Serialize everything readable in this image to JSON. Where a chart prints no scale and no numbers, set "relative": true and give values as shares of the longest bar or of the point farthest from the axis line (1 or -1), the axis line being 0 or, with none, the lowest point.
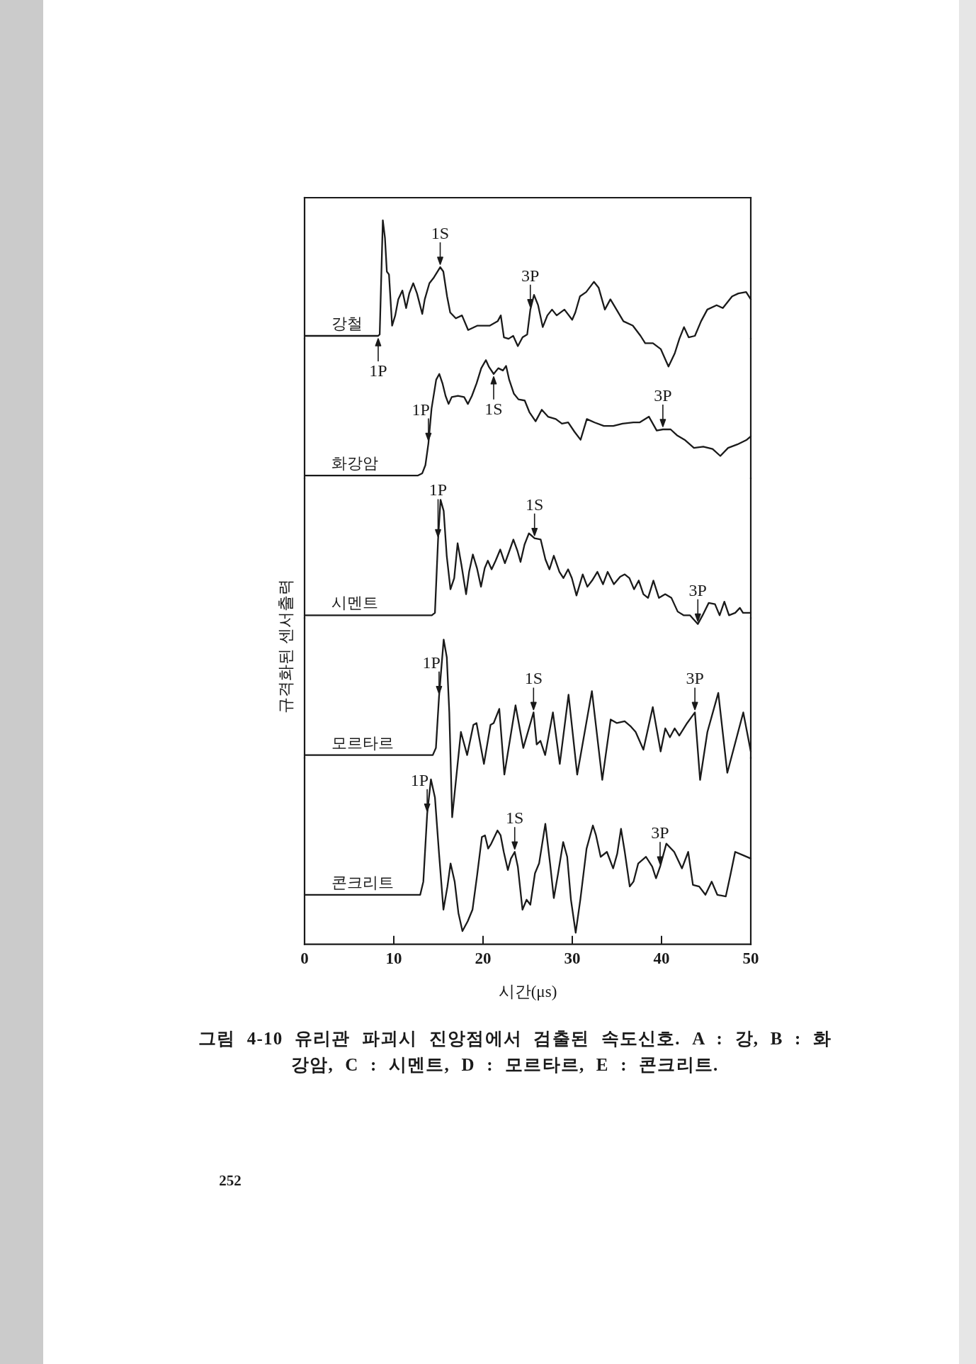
{
  "chart_data": [
    {
      "type": "line",
      "relative": true,
      "xlim": [
        0,
        50
      ],
      "tick_labels": false,
      "x": [
        0,
        8.25,
        8.42,
        8.77,
        9.01,
        9.22,
        9.46,
        9.81,
        10.16,
        10.5,
        10.96,
        11.38,
        11.73,
        12.18,
        12.6,
        13.19,
        13.47,
        13.99,
        14.5,
        15.2,
        15.55,
        15.97,
        16.32,
        16.95,
        17.64,
        18.33,
        19.38,
        20.77,
        21.64,
        21.99,
        22.34,
        22.86,
        23.38,
        23.9,
        24.43,
        24.95,
        25.3,
        25.71,
        26.17,
        26.69,
        27.21,
        27.73,
        28.25,
        29.12,
        29.99,
        30.34,
        30.86,
        31.56,
        32.43,
        32.95,
        33.65,
        34.27,
        34.86,
        35.73,
        36.78,
        37.65,
        38.17,
        39.04,
        39.91,
        40.78,
        41.48,
        42.0,
        42.52,
        43.04,
        43.74,
        44.43,
        45.13,
        46.17,
        46.87,
        47.91,
        48.61,
        49.48,
        50
      ],
      "series": [
        {
          "name": "강철",
          "color": "#1a1a1a",
          "values": [
            0.21,
            0.21,
            0.22,
            1.0,
            0.88,
            0.65,
            0.63,
            0.28,
            0.35,
            0.46,
            0.52,
            0.4,
            0.5,
            0.57,
            0.5,
            0.36,
            0.46,
            0.57,
            0.61,
            0.68,
            0.65,
            0.48,
            0.37,
            0.33,
            0.35,
            0.25,
            0.28,
            0.28,
            0.31,
            0.35,
            0.2,
            0.19,
            0.21,
            0.14,
            0.2,
            0.22,
            0.39,
            0.49,
            0.42,
            0.27,
            0.35,
            0.39,
            0.35,
            0.39,
            0.32,
            0.37,
            0.48,
            0.51,
            0.58,
            0.54,
            0.39,
            0.46,
            0.4,
            0.31,
            0.28,
            0.21,
            0.16,
            0.16,
            0.12,
            0,
            0.09,
            0.19,
            0.27,
            0.2,
            0.21,
            0.31,
            0.39,
            0.42,
            0.4,
            0.48,
            0.5,
            0.51,
            0.46
          ]
        }
      ],
      "annotations": [
        {
          "text": "1P",
          "x": 8.25,
          "y": 0.21
        },
        {
          "text": "1S",
          "x": 15.2,
          "y": 0.68
        },
        {
          "text": "3P",
          "x": 25.3,
          "y": 0.39
        }
      ]
    },
    {
      "type": "line",
      "relative": true,
      "xlim": [
        0,
        50
      ],
      "tick_labels": false,
      "x": [
        0,
        12.67,
        13.19,
        13.54,
        13.88,
        14.23,
        14.75,
        15.1,
        15.45,
        15.8,
        16.14,
        16.49,
        17.19,
        17.88,
        18.3,
        18.75,
        19.28,
        19.8,
        20.32,
        20.67,
        21.19,
        21.71,
        22.23,
        22.58,
        22.93,
        23.45,
        23.97,
        24.67,
        25.19,
        25.89,
        26.58,
        27.28,
        28.15,
        28.84,
        29.54,
        30.24,
        30.93,
        31.63,
        32.5,
        33.54,
        34.59,
        35.63,
        36.85,
        37.54,
        38.59,
        39.46,
        40.15,
        41.02,
        41.72,
        42.59,
        43.63,
        44.68,
        45.72,
        46.59,
        47.46,
        48.5,
        49.55,
        50
      ],
      "series": [
        {
          "name": "화강암",
          "color": "#1a1a1a",
          "values": [
            0,
            0,
            0.02,
            0.09,
            0.28,
            0.58,
            0.83,
            0.88,
            0.8,
            0.69,
            0.62,
            0.68,
            0.69,
            0.68,
            0.62,
            0.69,
            0.8,
            0.93,
            1.0,
            0.94,
            0.88,
            0.93,
            0.91,
            0.95,
            0.83,
            0.71,
            0.66,
            0.65,
            0.55,
            0.47,
            0.57,
            0.51,
            0.49,
            0.45,
            0.46,
            0.38,
            0.31,
            0.49,
            0.46,
            0.43,
            0.43,
            0.45,
            0.46,
            0.46,
            0.51,
            0.39,
            0.4,
            0.4,
            0.35,
            0.31,
            0.24,
            0.25,
            0.23,
            0.17,
            0.24,
            0.27,
            0.31,
            0.34
          ]
        }
      ],
      "annotations": [
        {
          "text": "1P",
          "x": 13.88,
          "y": 0.28
        },
        {
          "text": "1S",
          "x": 21.19,
          "y": 0.88
        },
        {
          "text": "3P",
          "x": 40.15,
          "y": 0.4
        }
      ]
    },
    {
      "type": "line",
      "relative": true,
      "xlim": [
        0,
        50
      ],
      "tick_labels": false,
      "x": [
        0,
        14.26,
        14.61,
        14.96,
        15.24,
        15.59,
        15.93,
        16.35,
        16.77,
        17.15,
        17.57,
        18.1,
        18.44,
        18.86,
        19.32,
        19.77,
        20.19,
        20.54,
        20.96,
        21.41,
        21.93,
        22.45,
        22.91,
        23.4,
        23.85,
        24.2,
        24.65,
        25.14,
        25.77,
        26.46,
        26.99,
        27.44,
        27.93,
        28.56,
        29.01,
        29.53,
        29.95,
        30.47,
        31.17,
        31.69,
        32.22,
        32.81,
        33.44,
        33.96,
        34.66,
        35.36,
        35.88,
        36.4,
        36.92,
        37.45,
        37.97,
        38.49,
        39.09,
        39.71,
        40.41,
        41.11,
        41.81,
        42.5,
        43.2,
        44.07,
        44.6,
        45.29,
        45.99,
        46.51,
        47.04,
        47.56,
        48.26,
        48.78,
        49.13,
        50
      ],
      "series": [
        {
          "name": "시멘트",
          "color": "#1a1a1a",
          "values": [
            0.07,
            0.07,
            0.09,
            0.68,
            1.0,
            0.91,
            0.55,
            0.28,
            0.37,
            0.65,
            0.48,
            0.24,
            0.42,
            0.56,
            0.45,
            0.3,
            0.45,
            0.51,
            0.44,
            0.51,
            0.6,
            0.49,
            0.58,
            0.68,
            0.59,
            0.5,
            0.64,
            0.73,
            0.69,
            0.68,
            0.52,
            0.44,
            0.55,
            0.42,
            0.37,
            0.44,
            0.37,
            0.23,
            0.4,
            0.3,
            0.35,
            0.42,
            0.32,
            0.42,
            0.32,
            0.38,
            0.4,
            0.37,
            0.28,
            0.35,
            0.24,
            0.21,
            0.35,
            0.21,
            0.24,
            0.21,
            0.1,
            0.07,
            0.07,
            0,
            0.07,
            0.17,
            0.16,
            0.07,
            0.18,
            0.07,
            0.09,
            0.13,
            0.09,
            0.09
          ]
        }
      ],
      "annotations": [
        {
          "text": "1P",
          "x": 14.96,
          "y": 0.68
        },
        {
          "text": "1S",
          "x": 25.77,
          "y": 0.69
        },
        {
          "text": "3P",
          "x": 44.07,
          "y": 0
        }
      ]
    },
    {
      "type": "line",
      "relative": true,
      "xlim": [
        0,
        50
      ],
      "tick_labels": false,
      "ylabel": "규격화된 센서출력",
      "x": [
        0,
        14.37,
        14.72,
        15.07,
        15.59,
        15.94,
        16.22,
        16.54,
        17.52,
        18.22,
        18.92,
        19.27,
        20.1,
        20.84,
        21.19,
        21.82,
        22.39,
        23.64,
        24.51,
        25.66,
        26.01,
        26.43,
        26.96,
        27.83,
        28.6,
        29.58,
        30.55,
        32.2,
        33.36,
        34.3,
        35.0,
        35.87,
        36.57,
        37.1,
        37.97,
        39.02,
        39.9,
        40.42,
        40.94,
        41.47,
        41.99,
        42.87,
        43.74,
        44.32,
        45.14,
        46.36,
        47.37,
        49.16,
        50
      ],
      "series": [
        {
          "name": "모르타르",
          "color": "#1a1a1a",
          "values": [
            0.35,
            0.35,
            0.39,
            0.68,
            1.0,
            0.9,
            0.59,
            0,
            0.48,
            0.35,
            0.52,
            0.53,
            0.3,
            0.52,
            0.53,
            0.61,
            0.24,
            0.63,
            0.39,
            0.59,
            0.41,
            0.43,
            0.35,
            0.59,
            0.3,
            0.69,
            0.24,
            0.71,
            0.21,
            0.55,
            0.53,
            0.54,
            0.51,
            0.48,
            0.38,
            0.62,
            0.37,
            0.5,
            0.45,
            0.5,
            0.46,
            0.53,
            0.59,
            0.21,
            0.48,
            0.7,
            0.25,
            0.59,
            0.37
          ]
        }
      ],
      "annotations": [
        {
          "text": "1P",
          "x": 15.07,
          "y": 0.68
        },
        {
          "text": "1S",
          "x": 25.66,
          "y": 0.59
        },
        {
          "text": "3P",
          "x": 43.74,
          "y": 0.59
        }
      ]
    },
    {
      "type": "line",
      "relative": true,
      "xlim": [
        0,
        50
      ],
      "xticks": [
        0,
        10,
        20,
        30,
        40,
        50
      ],
      "tick_labels": "x",
      "xlabel": "시간(μs)",
      "x": [
        0,
        12.51,
        12.96,
        13.31,
        13.74,
        14.16,
        14.61,
        15.07,
        15.56,
        16.01,
        16.36,
        16.82,
        17.24,
        17.69,
        18.29,
        18.82,
        19.34,
        19.87,
        20.22,
        20.57,
        20.92,
        21.62,
        21.97,
        22.32,
        22.78,
        23.13,
        23.55,
        23.9,
        24.42,
        24.88,
        25.3,
        25.82,
        26.28,
        26.98,
        27.51,
        27.93,
        28.38,
        28.98,
        29.43,
        29.85,
        30.38,
        30.9,
        31.6,
        32.31,
        32.66,
        33.18,
        33.88,
        34.58,
        35.04,
        35.46,
        35.88,
        36.44,
        36.86,
        37.39,
        38.26,
        38.96,
        39.38,
        39.84,
        40.54,
        41.42,
        42.29,
        42.99,
        43.52,
        44.22,
        44.92,
        45.62,
        46.25,
        47.2,
        47.72,
        48.25,
        49.12,
        50
      ],
      "series": [
        {
          "name": "콘크리트",
          "color": "#1a1a1a",
          "values": [
            0.3,
            0.3,
            0.3,
            0.38,
            0.79,
            1.0,
            0.89,
            0.55,
            0.21,
            0.35,
            0.49,
            0.38,
            0.19,
            0.08,
            0.14,
            0.21,
            0.42,
            0.65,
            0.66,
            0.58,
            0.61,
            0.69,
            0.66,
            0.56,
            0.45,
            0.52,
            0.56,
            0.47,
            0.21,
            0.27,
            0.24,
            0.43,
            0.49,
            0.73,
            0.49,
            0.28,
            0.42,
            0.62,
            0.53,
            0.27,
            0.07,
            0.27,
            0.58,
            0.72,
            0.66,
            0.53,
            0.56,
            0.46,
            0.55,
            0.7,
            0.56,
            0.35,
            0.38,
            0.49,
            0.53,
            0.47,
            0.4,
            0.47,
            0.61,
            0.56,
            0.46,
            0.56,
            0.36,
            0.35,
            0.3,
            0.38,
            0.3,
            0.29,
            0.42,
            0.56,
            0.54,
            0.52
          ]
        }
      ],
      "annotations": [
        {
          "text": "1P",
          "x": 13.74,
          "y": 0.79
        },
        {
          "text": "1S",
          "x": 23.55,
          "y": 0.56
        },
        {
          "text": "3P",
          "x": 39.84,
          "y": 0.47
        },
        "그림 4-10 유리관 파괴시 진앙점에서 검출된 속도신호. A : 강, B : 화강암, C : 시멘트, D : 모르타르, E : 콘크리트.",
        "252"
      ]
    }
  ]
}
